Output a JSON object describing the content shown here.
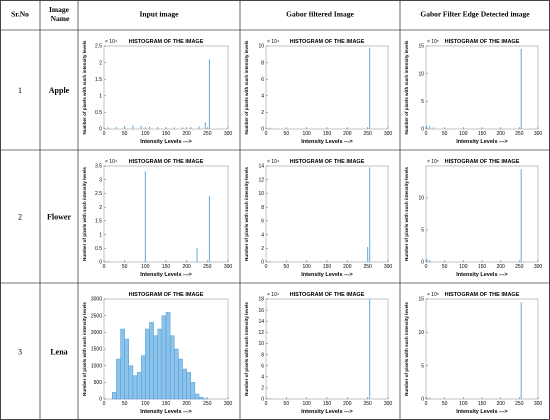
{
  "table": {
    "headers": [
      "Sr.No",
      "Image Name",
      "Input image",
      "Gabor filtered Image",
      "Gabor Filter Edge Detected image"
    ],
    "rows": [
      {
        "sr_no": "1",
        "name": "Apple",
        "charts": [
          {
            "type": "stem",
            "title": "HISTOGRAM OF THE IMAGE",
            "xlabel": "Intensity Levels --->",
            "ylabel": "Number of pixels with such intensity levels",
            "exponent": "× 10⁴",
            "xlim": [
              0,
              300
            ],
            "xticks": [
              0,
              50,
              100,
              150,
              200,
              250,
              300
            ],
            "ylim": [
              0,
              2.5
            ],
            "yticks": [
              0,
              0.5,
              1,
              1.5,
              2,
              2.5
            ],
            "x": [
              10,
              30,
              50,
              70,
              90,
              110,
              130,
              150,
              170,
              190,
              210,
              230,
              245,
              255
            ],
            "values": [
              0.05,
              0.06,
              0.09,
              0.11,
              0.09,
              0.07,
              0.06,
              0.06,
              0.05,
              0.05,
              0.06,
              0.08,
              0.2,
              2.1
            ]
          },
          {
            "type": "stem",
            "title": "HISTOGRAM OF THE IMAGE",
            "xlabel": "Intensity Levels --->",
            "ylabel": "Number of pixels with such intensity levels",
            "exponent": "× 10⁴",
            "xlim": [
              0,
              300
            ],
            "xticks": [
              0,
              50,
              100,
              150,
              200,
              250,
              300
            ],
            "ylim": [
              0,
              10
            ],
            "yticks": [
              0,
              2,
              4,
              6,
              8,
              10
            ],
            "x": [
              10,
              50,
              100,
              150,
              200,
              250,
              255
            ],
            "values": [
              0.15,
              0.12,
              0.12,
              0.12,
              0.12,
              0.15,
              9.8
            ]
          },
          {
            "type": "stem",
            "title": "HISTOGRAM OF THE IMAGE",
            "xlabel": "Intensity Levels --->",
            "ylabel": "Number of pixels with such intensity levels",
            "exponent": "× 10⁵",
            "xlim": [
              0,
              300
            ],
            "xticks": [
              0,
              50,
              100,
              150,
              200,
              250,
              300
            ],
            "ylim": [
              0,
              15
            ],
            "yticks": [
              0,
              5,
              10,
              15
            ],
            "x": [
              2,
              10,
              20,
              50,
              100,
              150,
              200,
              255
            ],
            "values": [
              0.6,
              0.5,
              0.3,
              0.2,
              0.15,
              0.15,
              0.15,
              14.5
            ]
          }
        ]
      },
      {
        "sr_no": "2",
        "name": "Flower",
        "charts": [
          {
            "type": "stem",
            "title": "HISTOGRAM OF THE IMAGE",
            "xlabel": "Intensity Levels --->",
            "ylabel": "Number of pixels with such intensity levels",
            "exponent": "× 10⁴",
            "xlim": [
              0,
              300
            ],
            "xticks": [
              0,
              50,
              100,
              150,
              200,
              250,
              300
            ],
            "ylim": [
              0,
              3.5
            ],
            "yticks": [
              0,
              0.5,
              1,
              1.5,
              2,
              2.5,
              3,
              3.5
            ],
            "x": [
              10,
              50,
              100,
              150,
              200,
              225,
              255
            ],
            "values": [
              0.04,
              0.05,
              3.3,
              0.05,
              0.05,
              0.5,
              2.4
            ]
          },
          {
            "type": "stem",
            "title": "HISTOGRAM OF THE IMAGE",
            "xlabel": "Intensity Levels --->",
            "ylabel": "Number of pixels with such intensity levels",
            "exponent": "× 10⁴",
            "xlim": [
              0,
              300
            ],
            "xticks": [
              0,
              50,
              100,
              150,
              200,
              250,
              300
            ],
            "ylim": [
              0,
              14
            ],
            "yticks": [
              0,
              2,
              4,
              6,
              8,
              10,
              12,
              14
            ],
            "x": [
              10,
              50,
              100,
              150,
              200,
              250,
              255
            ],
            "values": [
              0.15,
              0.12,
              0.12,
              0.12,
              0.12,
              2.2,
              13.8
            ]
          },
          {
            "type": "stem",
            "title": "HISTOGRAM OF THE IMAGE",
            "xlabel": "Intensity Levels --->",
            "ylabel": "Number of pixels with such intensity levels",
            "exponent": "× 10⁵",
            "xlim": [
              0,
              300
            ],
            "xticks": [
              0,
              50,
              100,
              150,
              200,
              250,
              300
            ],
            "ylim": [
              0,
              15
            ],
            "yticks": [
              0,
              5,
              10
            ],
            "x": [
              2,
              10,
              50,
              100,
              150,
              200,
              255
            ],
            "values": [
              0.5,
              0.3,
              0.15,
              0.15,
              0.15,
              0.15,
              14.5
            ]
          }
        ]
      },
      {
        "sr_no": "3",
        "name": "Lena",
        "charts": [
          {
            "type": "histogram",
            "title": "HISTOGRAM OF THE IMAGE",
            "xlabel": "Intensity Levels --->",
            "ylabel": "Number of pixels with such intensity levels",
            "xlim": [
              0,
              300
            ],
            "xticks": [
              0,
              50,
              100,
              150,
              200,
              250,
              300
            ],
            "ylim": [
              0,
              3000
            ],
            "yticks": [
              0,
              500,
              1000,
              1500,
              2000,
              2500,
              3000
            ],
            "bins": [
              20,
              30,
              40,
              50,
              60,
              70,
              80,
              90,
              100,
              110,
              120,
              130,
              140,
              150,
              160,
              170,
              180,
              190,
              200,
              210,
              220,
              230,
              240,
              250
            ],
            "values": [
              200,
              1200,
              2100,
              1800,
              1000,
              700,
              800,
              1300,
              2100,
              2300,
              1900,
              2100,
              2500,
              2600,
              1900,
              1500,
              1200,
              900,
              800,
              500,
              150,
              50,
              10
            ]
          },
          {
            "type": "stem",
            "title": "HISTOGRAM OF THE IMAGE",
            "xlabel": "Intensity Levels --->",
            "ylabel": "Number of pixels with such intensity levels",
            "exponent": "× 10⁴",
            "xlim": [
              0,
              300
            ],
            "xticks": [
              0,
              50,
              100,
              150,
              200,
              250,
              300
            ],
            "ylim": [
              0,
              18
            ],
            "yticks": [
              0,
              2,
              4,
              6,
              8,
              10,
              12,
              14,
              16,
              18
            ],
            "x": [
              10,
              50,
              100,
              150,
              200,
              250,
              255
            ],
            "values": [
              0.2,
              0.15,
              0.15,
              0.15,
              0.15,
              0.2,
              18
            ]
          },
          {
            "type": "stem",
            "title": "HISTOGRAM OF THE IMAGE",
            "xlabel": "Intensity Levels --->",
            "ylabel": "Number of pixels with such intensity levels",
            "exponent": "× 10⁵",
            "xlim": [
              0,
              300
            ],
            "xticks": [
              0,
              50,
              100,
              150,
              200,
              250,
              300
            ],
            "ylim": [
              0,
              15
            ],
            "yticks": [
              0,
              5,
              10,
              15
            ],
            "x": [
              2,
              10,
              50,
              100,
              150,
              200,
              255
            ],
            "values": [
              0.3,
              0.2,
              0.1,
              0.1,
              0.1,
              0.1,
              14.5
            ]
          }
        ]
      }
    ]
  }
}
